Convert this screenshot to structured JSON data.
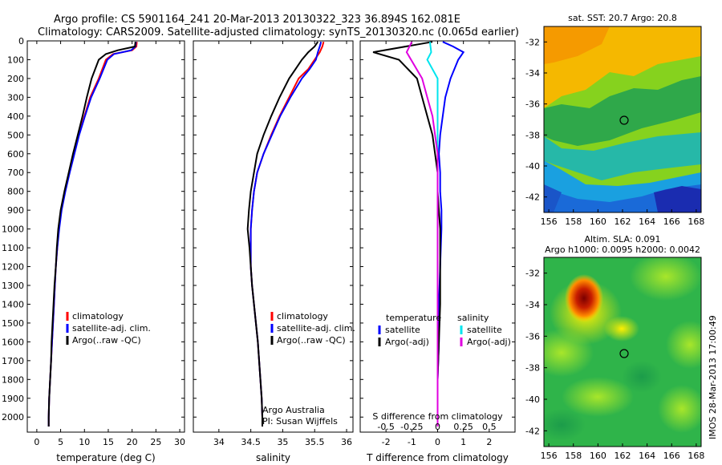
{
  "header": {
    "line1": "Argo profile: CS 5901164_241 20-Mar-2013 20130322_323 36.894S 162.081E",
    "line2": "Climatology: CARS2009. Satellite-adjusted climatology: synTS_20130320.nc (0.065d earlier)"
  },
  "side_note": "IMOS 28-Mar-2013 17:00:49",
  "colors": {
    "climatology": "#ff0000",
    "satellite": "#0000ff",
    "argo": "#000000",
    "sal_satellite": "#00e5ee",
    "sal_argo": "#e000e0"
  },
  "chart_data": [
    {
      "type": "line",
      "xlabel": "temperature (deg C)",
      "xlim": [
        -2,
        31
      ],
      "xticks": [
        0,
        5,
        10,
        15,
        20,
        25,
        30
      ],
      "ylim": [
        0,
        2080
      ],
      "yticks": [
        0,
        100,
        200,
        300,
        400,
        500,
        600,
        700,
        800,
        900,
        1000,
        1100,
        1200,
        1300,
        1400,
        1500,
        1600,
        1700,
        1800,
        1900,
        2000
      ],
      "legend": [
        "climatology",
        "satellite-adj. clim.",
        "Argo(..raw -QC)"
      ],
      "series": [
        {
          "name": "climatology",
          "color": "#ff0000",
          "points": [
            [
              21.0,
              5
            ],
            [
              20.9,
              30
            ],
            [
              20.0,
              50
            ],
            [
              16.0,
              70
            ],
            [
              14.5,
              100
            ],
            [
              13.0,
              200
            ],
            [
              11.2,
              300
            ],
            [
              10.0,
              400
            ],
            [
              8.8,
              500
            ],
            [
              7.8,
              600
            ],
            [
              6.8,
              700
            ],
            [
              5.9,
              800
            ],
            [
              5.1,
              900
            ],
            [
              4.6,
              1000
            ],
            [
              4.3,
              1100
            ],
            [
              4.0,
              1200
            ],
            [
              3.8,
              1300
            ],
            [
              3.6,
              1400
            ],
            [
              3.4,
              1500
            ],
            [
              3.2,
              1600
            ],
            [
              3.0,
              1700
            ],
            [
              2.8,
              1800
            ],
            [
              2.6,
              1900
            ],
            [
              2.5,
              2000
            ],
            [
              2.5,
              2050
            ]
          ]
        },
        {
          "name": "satellite-adj. clim.",
          "color": "#0000ff",
          "points": [
            [
              20.8,
              5
            ],
            [
              20.7,
              30
            ],
            [
              19.8,
              50
            ],
            [
              16.2,
              70
            ],
            [
              14.8,
              100
            ],
            [
              13.2,
              200
            ],
            [
              11.4,
              300
            ],
            [
              10.1,
              400
            ],
            [
              8.9,
              500
            ],
            [
              7.9,
              600
            ],
            [
              6.9,
              700
            ],
            [
              6.0,
              800
            ],
            [
              5.2,
              900
            ],
            [
              4.7,
              1000
            ],
            [
              4.3,
              1100
            ],
            [
              4.0,
              1200
            ],
            [
              3.8,
              1300
            ],
            [
              3.6,
              1400
            ],
            [
              3.4,
              1500
            ],
            [
              3.2,
              1600
            ],
            [
              3.0,
              1700
            ],
            [
              2.8,
              1800
            ],
            [
              2.6,
              1900
            ],
            [
              2.5,
              2000
            ],
            [
              2.5,
              2050
            ]
          ]
        },
        {
          "name": "Argo(..raw -QC)",
          "color": "#000000",
          "points": [
            [
              20.7,
              5
            ],
            [
              20.6,
              30
            ],
            [
              17.0,
              50
            ],
            [
              14.5,
              70
            ],
            [
              13.0,
              100
            ],
            [
              11.5,
              200
            ],
            [
              10.5,
              300
            ],
            [
              9.6,
              400
            ],
            [
              8.6,
              500
            ],
            [
              7.6,
              600
            ],
            [
              6.7,
              700
            ],
            [
              5.8,
              800
            ],
            [
              5.0,
              900
            ],
            [
              4.5,
              1000
            ],
            [
              4.2,
              1100
            ],
            [
              4.0,
              1200
            ],
            [
              3.7,
              1300
            ],
            [
              3.5,
              1400
            ],
            [
              3.3,
              1500
            ],
            [
              3.1,
              1600
            ],
            [
              3.0,
              1700
            ],
            [
              2.8,
              1800
            ],
            [
              2.6,
              1900
            ],
            [
              2.5,
              2000
            ],
            [
              2.5,
              2050
            ]
          ]
        }
      ]
    },
    {
      "type": "line",
      "xlabel": "salinity",
      "xlim": [
        33.6,
        36.1
      ],
      "xticks": [
        34,
        34.5,
        35,
        35.5,
        36
      ],
      "ylim": [
        0,
        2080
      ],
      "legend": [
        "climatology",
        "satellite-adj. clim.",
        "Argo(..raw -QC)"
      ],
      "annotation": [
        "Argo Australia",
        "PI: Susan Wijffels"
      ],
      "series": [
        {
          "name": "climatology",
          "color": "#ff0000",
          "points": [
            [
              35.64,
              5
            ],
            [
              35.62,
              30
            ],
            [
              35.58,
              60
            ],
            [
              35.5,
              100
            ],
            [
              35.4,
              150
            ],
            [
              35.25,
              200
            ],
            [
              35.1,
              300
            ],
            [
              34.95,
              400
            ],
            [
              34.82,
              500
            ],
            [
              34.7,
              600
            ],
            [
              34.6,
              700
            ],
            [
              34.55,
              800
            ],
            [
              34.52,
              900
            ],
            [
              34.5,
              1000
            ],
            [
              34.5,
              1100
            ],
            [
              34.5,
              1200
            ],
            [
              34.52,
              1300
            ],
            [
              34.55,
              1400
            ],
            [
              34.58,
              1500
            ],
            [
              34.61,
              1600
            ],
            [
              34.63,
              1700
            ],
            [
              34.65,
              1800
            ],
            [
              34.67,
              1900
            ],
            [
              34.68,
              2000
            ],
            [
              34.68,
              2050
            ]
          ]
        },
        {
          "name": "satellite-adj. clim.",
          "color": "#0000ff",
          "points": [
            [
              35.6,
              5
            ],
            [
              35.58,
              30
            ],
            [
              35.55,
              60
            ],
            [
              35.52,
              100
            ],
            [
              35.42,
              150
            ],
            [
              35.3,
              200
            ],
            [
              35.12,
              300
            ],
            [
              34.96,
              400
            ],
            [
              34.83,
              500
            ],
            [
              34.7,
              600
            ],
            [
              34.6,
              700
            ],
            [
              34.55,
              800
            ],
            [
              34.52,
              900
            ],
            [
              34.5,
              1000
            ],
            [
              34.5,
              1100
            ],
            [
              34.5,
              1200
            ],
            [
              34.52,
              1300
            ],
            [
              34.55,
              1400
            ],
            [
              34.58,
              1500
            ],
            [
              34.61,
              1600
            ],
            [
              34.63,
              1700
            ],
            [
              34.65,
              1800
            ],
            [
              34.67,
              1900
            ],
            [
              34.68,
              2000
            ],
            [
              34.68,
              2050
            ]
          ]
        },
        {
          "name": "Argo(..raw -QC)",
          "color": "#000000",
          "points": [
            [
              35.55,
              5
            ],
            [
              35.5,
              30
            ],
            [
              35.4,
              60
            ],
            [
              35.3,
              100
            ],
            [
              35.2,
              150
            ],
            [
              35.1,
              200
            ],
            [
              34.95,
              300
            ],
            [
              34.82,
              400
            ],
            [
              34.7,
              500
            ],
            [
              34.6,
              600
            ],
            [
              34.55,
              700
            ],
            [
              34.5,
              800
            ],
            [
              34.47,
              900
            ],
            [
              34.45,
              1000
            ],
            [
              34.48,
              1100
            ],
            [
              34.5,
              1200
            ],
            [
              34.52,
              1300
            ],
            [
              34.55,
              1400
            ],
            [
              34.58,
              1500
            ],
            [
              34.61,
              1600
            ],
            [
              34.63,
              1700
            ],
            [
              34.65,
              1800
            ],
            [
              34.67,
              1900
            ],
            [
              34.68,
              2000
            ],
            [
              34.68,
              2050
            ]
          ]
        }
      ]
    },
    {
      "type": "line",
      "xlabel": "T difference from climatology",
      "top_label": "S difference from climatology",
      "xlim": [
        -3,
        3
      ],
      "xticks": [
        -2,
        -1,
        0,
        1,
        2
      ],
      "sticks_labels": [
        "-0.5",
        "-0.25",
        "0",
        "0.25",
        "0.5"
      ],
      "sticks_values": [
        -2,
        -1,
        0,
        1,
        2
      ],
      "ylim": [
        0,
        2080
      ],
      "legend_left_title": "temperature",
      "legend_right_title": "salinity",
      "legend": [
        "satellite",
        "Argo(-adj)",
        "satellite",
        "Argo(-adj)"
      ],
      "series": [
        {
          "name": "temperature satellite",
          "color": "#0000ff",
          "points": [
            [
              0.2,
              5
            ],
            [
              0.6,
              30
            ],
            [
              1.0,
              60
            ],
            [
              0.8,
              100
            ],
            [
              0.5,
              200
            ],
            [
              0.3,
              300
            ],
            [
              0.2,
              400
            ],
            [
              0.1,
              500
            ],
            [
              0.05,
              600
            ],
            [
              0.1,
              700
            ],
            [
              0.1,
              800
            ],
            [
              0.15,
              900
            ],
            [
              0.15,
              1000
            ],
            [
              0.1,
              1200
            ],
            [
              0.05,
              1400
            ],
            [
              0.05,
              1600
            ],
            [
              0.0,
              1800
            ],
            [
              0.0,
              2050
            ]
          ]
        },
        {
          "name": "temperature Argo(-adj)",
          "color": "#000000",
          "points": [
            [
              -0.2,
              5
            ],
            [
              -2.5,
              60
            ],
            [
              -1.5,
              100
            ],
            [
              -0.8,
              200
            ],
            [
              -0.6,
              300
            ],
            [
              -0.4,
              400
            ],
            [
              -0.2,
              500
            ],
            [
              -0.1,
              600
            ],
            [
              0.0,
              700
            ],
            [
              0.0,
              800
            ],
            [
              0.1,
              1000
            ],
            [
              0.1,
              1200
            ],
            [
              0.1,
              1400
            ],
            [
              0.05,
              1600
            ],
            [
              0.0,
              1800
            ],
            [
              0.0,
              2050
            ]
          ]
        },
        {
          "name": "salinity satellite",
          "color": "#00e5ee",
          "points": [
            [
              -0.3,
              5
            ],
            [
              -0.25,
              60
            ],
            [
              -0.4,
              100
            ],
            [
              0.0,
              200
            ],
            [
              0.0,
              300
            ],
            [
              0.0,
              400
            ],
            [
              0.0,
              500
            ],
            [
              0.0,
              700
            ],
            [
              0.0,
              1000
            ],
            [
              0.0,
              1500
            ],
            [
              0.0,
              2050
            ]
          ]
        },
        {
          "name": "salinity Argo(-adj)",
          "color": "#e000e0",
          "points": [
            [
              -1.0,
              5
            ],
            [
              -1.2,
              60
            ],
            [
              -0.6,
              200
            ],
            [
              -0.4,
              300
            ],
            [
              -0.2,
              400
            ],
            [
              -0.1,
              500
            ],
            [
              0.0,
              600
            ],
            [
              0.0,
              700
            ],
            [
              0.0,
              900
            ],
            [
              0.0,
              1000
            ],
            [
              0.0,
              1300
            ],
            [
              0.0,
              1600
            ],
            [
              0.0,
              2050
            ]
          ]
        }
      ]
    },
    {
      "type": "heatmap",
      "title": "sat. SST: 20.7  Argo: 20.8",
      "xlim": [
        155.6,
        168.4
      ],
      "ylim": [
        -43,
        -31
      ],
      "xticks": [
        156,
        158,
        160,
        162,
        164,
        166,
        168
      ],
      "yticks": [
        -32,
        -34,
        -36,
        -38,
        -40,
        -42
      ],
      "marker": [
        162.1,
        -36.9
      ]
    },
    {
      "type": "heatmap",
      "title_line1": "Altim. SLA: 0.091",
      "title_line2": "Argo h1000: 0.0095  h2000: 0.0042",
      "xlim": [
        155.6,
        168.4
      ],
      "ylim": [
        -43,
        -31
      ],
      "xticks": [
        156,
        158,
        160,
        162,
        164,
        166,
        168
      ],
      "yticks": [
        -32,
        -34,
        -36,
        -38,
        -40,
        -42
      ],
      "marker": [
        162.1,
        -36.9
      ]
    }
  ]
}
